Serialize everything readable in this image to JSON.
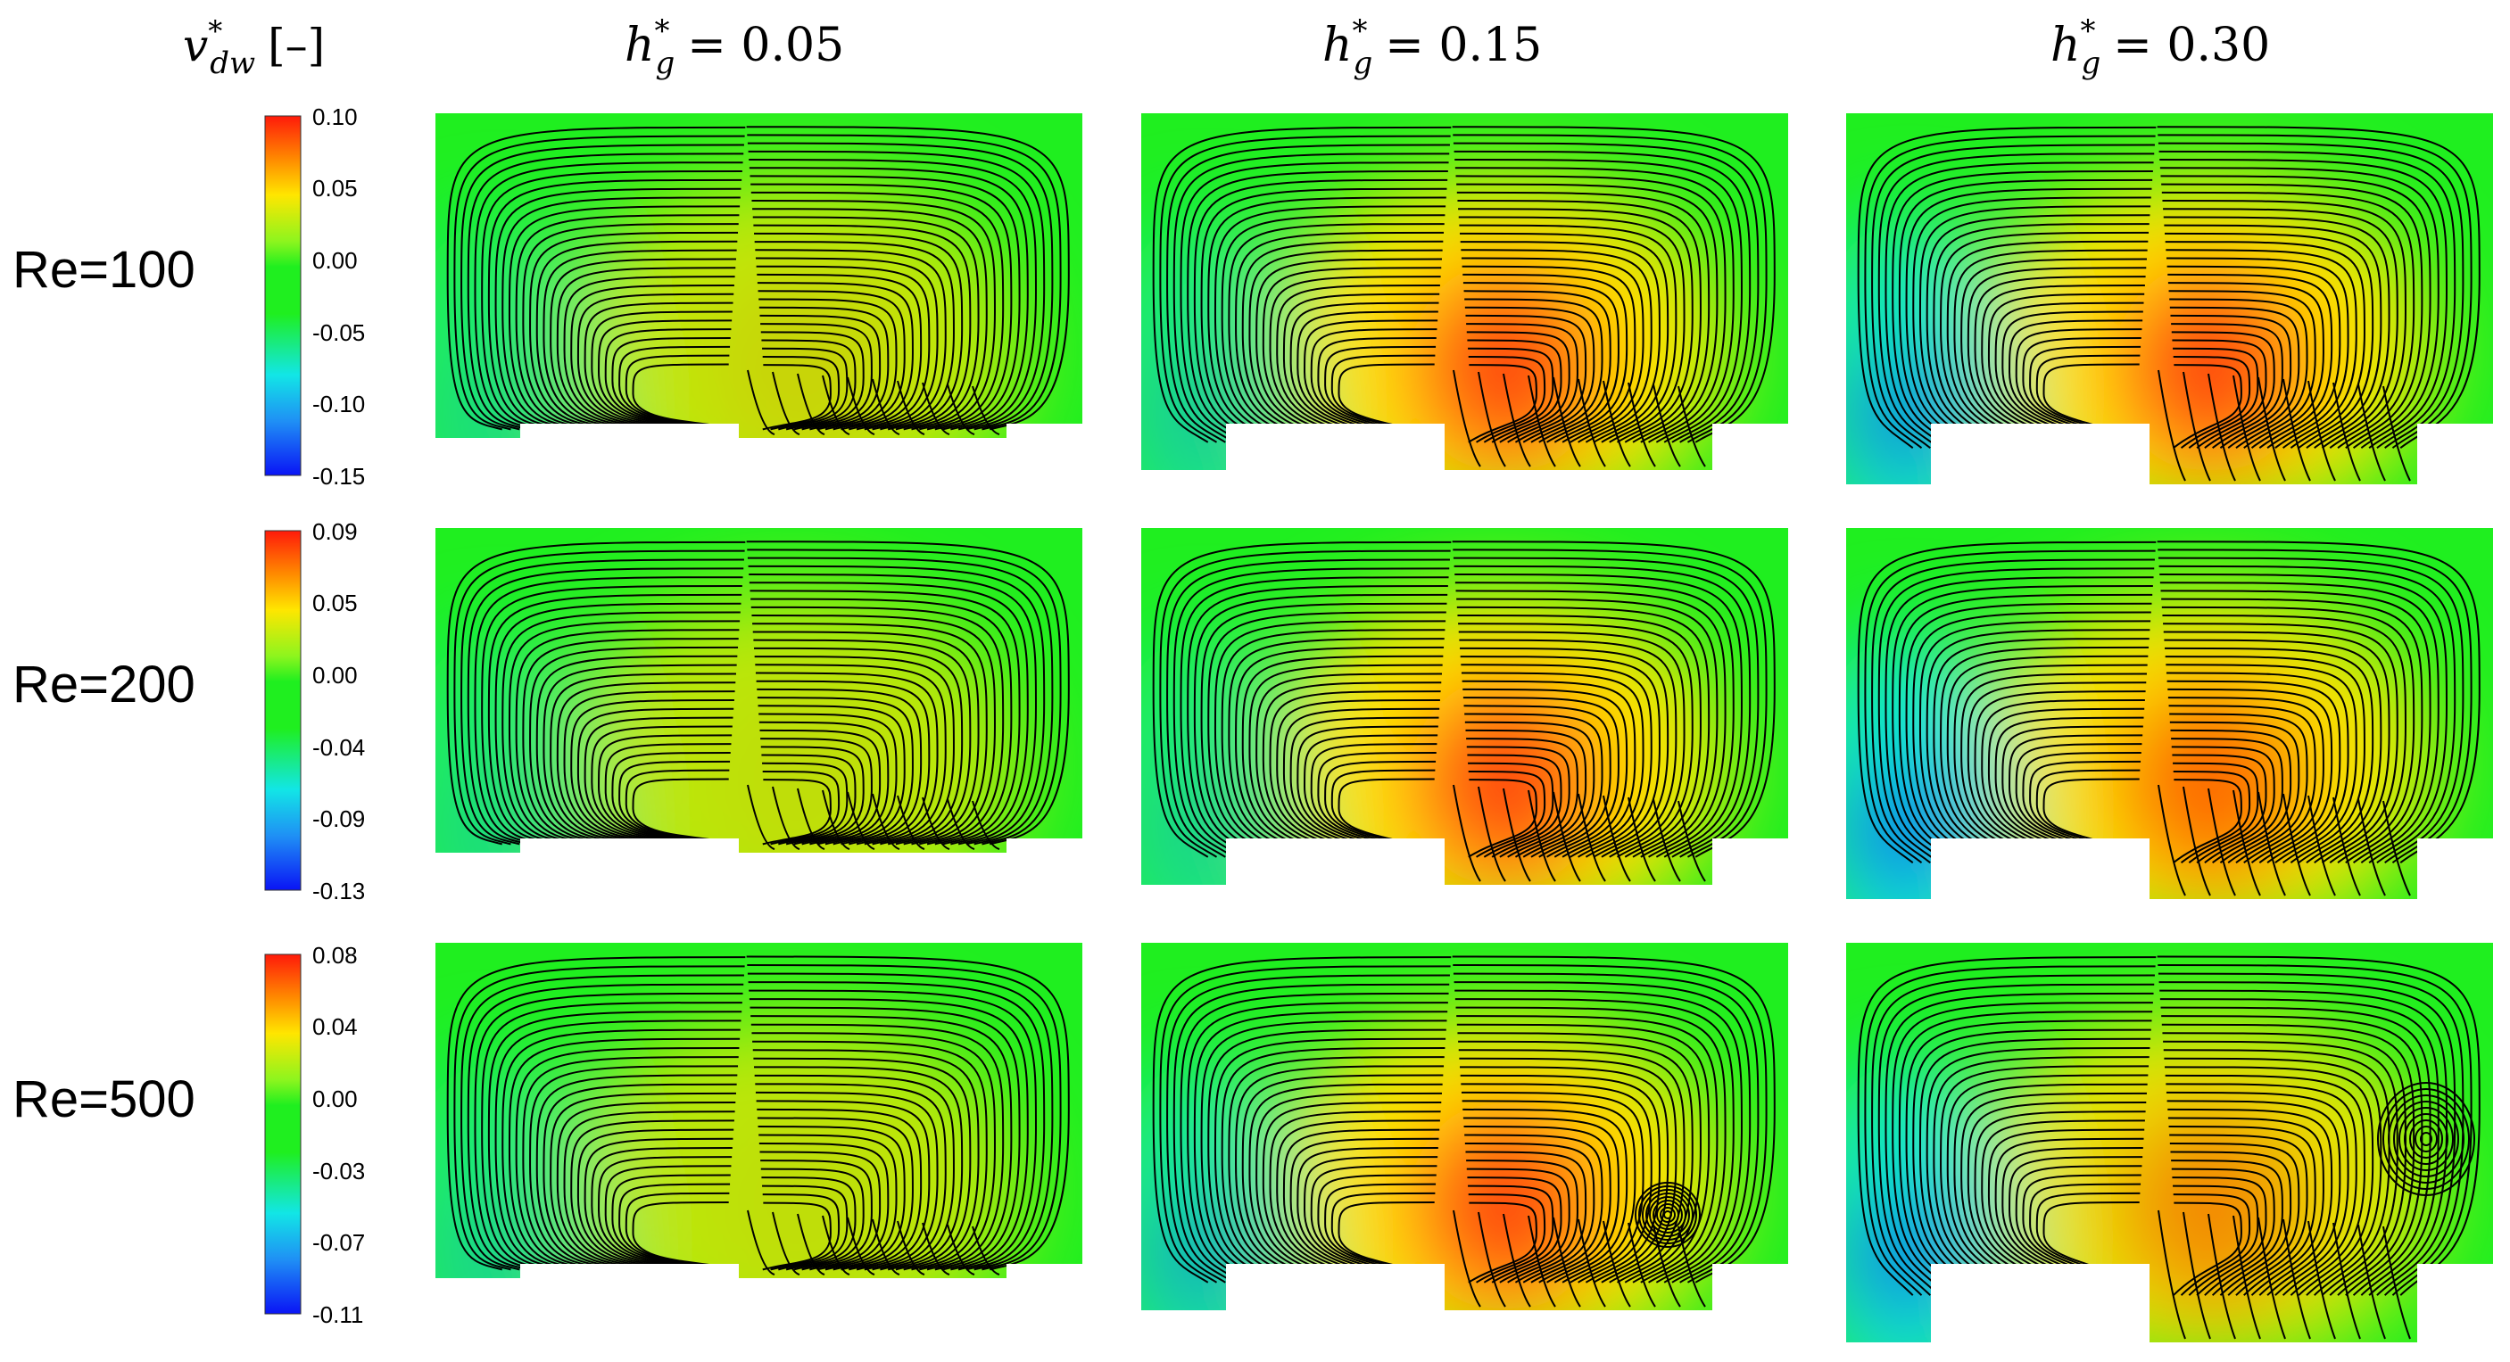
{
  "colorbar_title": {
    "symbol": "v",
    "sup": "*",
    "sub": "dw",
    "unit": "[–]"
  },
  "columns": [
    {
      "symbol": "h",
      "sup": "*",
      "sub": "g",
      "equals": "= 0.05"
    },
    {
      "symbol": "h",
      "sup": "*",
      "sub": "g",
      "equals": "= 0.15"
    },
    {
      "symbol": "h",
      "sup": "*",
      "sub": "g",
      "equals": "= 0.30"
    }
  ],
  "rows": [
    {
      "label": "Re=100",
      "colorbar_ticks": [
        "0.10",
        "0.05",
        "0.00",
        "-0.05",
        "-0.10",
        "-0.15"
      ]
    },
    {
      "label": "Re=200",
      "colorbar_ticks": [
        "0.09",
        "0.05",
        "0.00",
        "-0.04",
        "-0.09",
        "-0.13"
      ]
    },
    {
      "label": "Re=500",
      "colorbar_ticks": [
        "0.08",
        "0.04",
        "0.00",
        "-0.03",
        "-0.07",
        "-0.11"
      ]
    }
  ],
  "colors": {
    "background_field": "#1fef1f",
    "positive_max": "#ff1a0a",
    "positive_mid": "#ffe600",
    "negative_mid": "#12e6e6",
    "negative_max": "#0a14f5",
    "streamline": "#000000"
  },
  "panel_intensity": [
    [
      {
        "pos": 0.35,
        "neg": 0.45
      },
      {
        "pos": 1.0,
        "neg": 0.55
      },
      {
        "pos": 1.0,
        "neg": 0.9
      }
    ],
    [
      {
        "pos": 0.3,
        "neg": 0.45
      },
      {
        "pos": 1.0,
        "neg": 0.5
      },
      {
        "pos": 0.85,
        "neg": 1.0
      }
    ],
    [
      {
        "pos": 0.3,
        "neg": 0.5
      },
      {
        "pos": 1.0,
        "neg": 0.7
      },
      {
        "pos": 0.7,
        "neg": 0.95
      }
    ]
  ]
}
